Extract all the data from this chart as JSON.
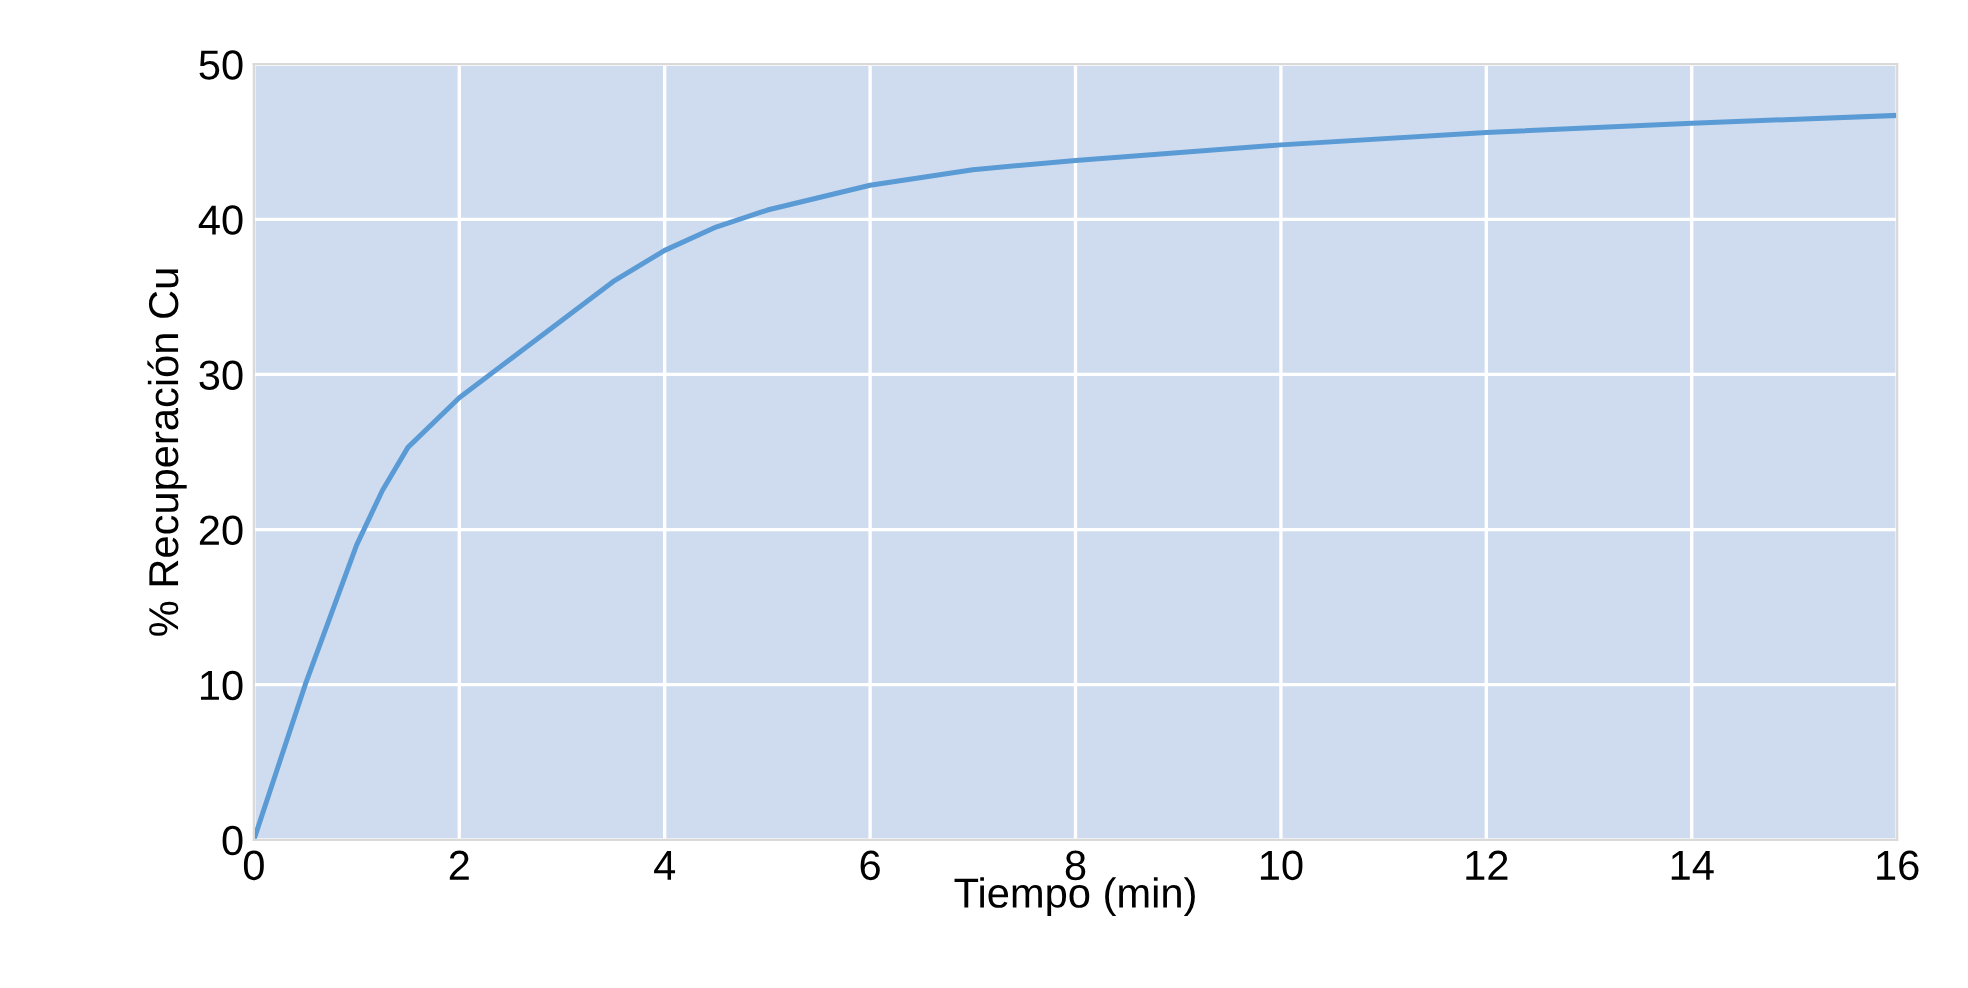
{
  "chart_data": {
    "type": "line",
    "xlabel": "Tiempo (min)",
    "ylabel": "% Recuperación Cu",
    "x": [
      0,
      0.25,
      0.5,
      0.75,
      1,
      1.25,
      1.5,
      2,
      2.5,
      3,
      3.5,
      4,
      4.5,
      5,
      6,
      7,
      8,
      10,
      12,
      14,
      16
    ],
    "series": [
      {
        "color": "#5b9bd5",
        "values": [
          0,
          5,
          10,
          14.5,
          19,
          22.5,
          25.3,
          28.5,
          31,
          33.5,
          36,
          38,
          39.5,
          40.6,
          42.2,
          43.2,
          43.8,
          44.8,
          45.6,
          46.2,
          46.7
        ]
      }
    ],
    "xlim": [
      0,
      16
    ],
    "ylim": [
      0,
      50
    ],
    "xticks": [
      0,
      2,
      4,
      6,
      8,
      10,
      12,
      14,
      16
    ],
    "yticks": [
      0,
      10,
      20,
      30,
      40,
      50
    ],
    "grid": true,
    "marker": "none",
    "line_style": "solid"
  }
}
